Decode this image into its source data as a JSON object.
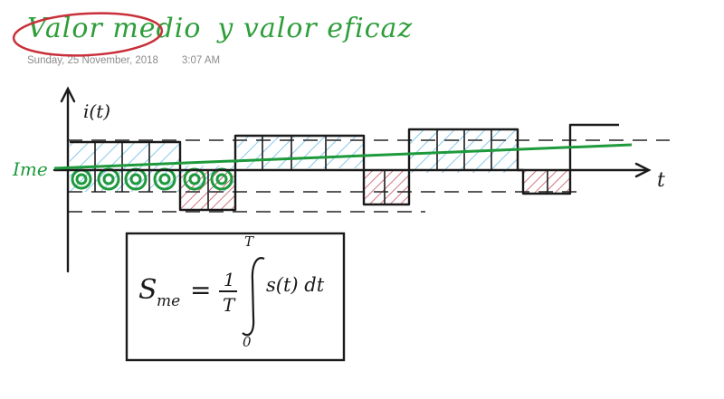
{
  "note": {
    "title_part1": "Valor medio",
    "title_part2": "y valor eficaz",
    "date": "Sunday, 25 November, 2018",
    "time": "3:07 AM"
  },
  "sketch": {
    "y_axis_label": "i(t)",
    "x_axis_label": "t",
    "mean_level_label": "Ime"
  },
  "formula": {
    "lhs": "S",
    "lhs_sub": "me",
    "equals": "=",
    "frac_num": "1",
    "frac_den": "T",
    "upper_limit": "T",
    "lower_limit": "0",
    "integrand": "s(t) dt"
  },
  "colors": {
    "title_green": "#2e9e3a",
    "ink_black": "#1a1a1a",
    "circle_red": "#c8303a",
    "hatch_blue": "#6fc0e6",
    "hatch_red": "#c0404e",
    "mean_line_green": "#1e9a3c"
  }
}
